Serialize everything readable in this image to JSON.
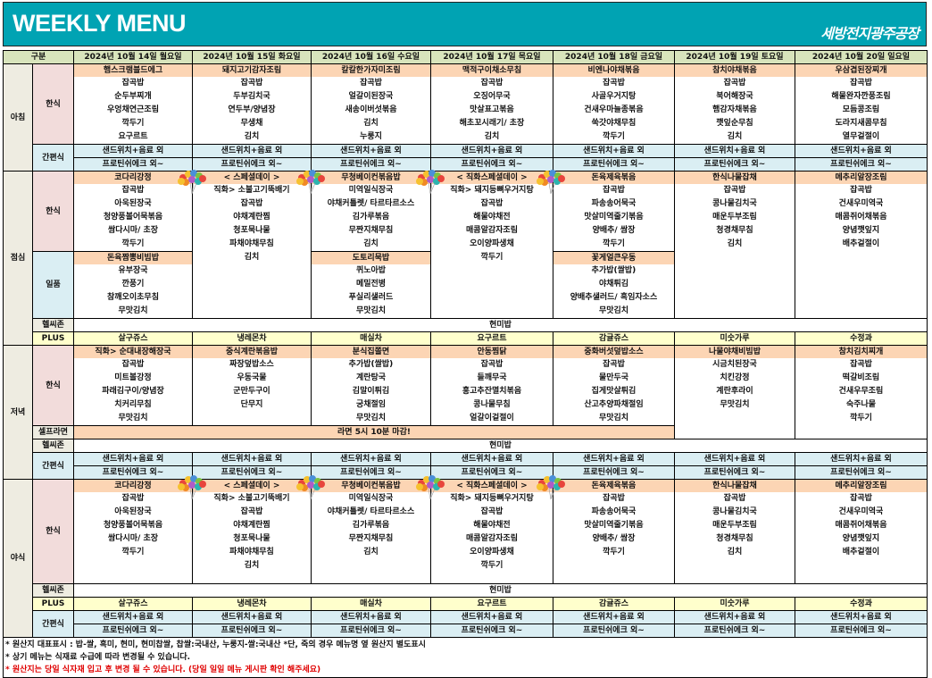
{
  "header": {
    "title": "WEEKLY MENU",
    "logo": "세방전지광주공장",
    "category_label": "구분",
    "days": [
      "2024년 10월 14일 월요일",
      "2024년 10월 15일 화요일",
      "2024년 10월 16일 수요일",
      "2024년 10월 17일 목요일",
      "2024년 10월 18일 금요일",
      "2024년 10월 19일 토요일",
      "2024년 10월 20일 일요일"
    ]
  },
  "colors": {
    "title_bar": "#00a3b3",
    "main_dish": "#fcd5b4",
    "snack": "#daeef3",
    "plus": "#ffffcc",
    "header": "#d8e4bc",
    "korean_label": "#f2dcdb",
    "notice_red": "#e00000"
  },
  "breakfast": {
    "label": "아침",
    "korean": {
      "label": "한식",
      "days": [
        {
          "main": "햄스크램블드에그",
          "items": [
            "잡곡밥",
            "순두부찌개",
            "우엉채연근조림",
            "깍두기",
            "요구르트"
          ]
        },
        {
          "main": "돼지고기감자조림",
          "items": [
            "잡곡밥",
            "두부김치국",
            "연두부/양념장",
            "무생채",
            "김치"
          ]
        },
        {
          "main": "칼칼한가자미조림",
          "items": [
            "잡곡밥",
            "얼갈이된장국",
            "새송이버섯볶음",
            "김치",
            "누룽지"
          ]
        },
        {
          "main": "맥적구이채소무침",
          "items": [
            "잡곡밥",
            "오징어무국",
            "맛살표고볶음",
            "해초꼬시래기/ 초장",
            "김치"
          ]
        },
        {
          "main": "비엔나야채볶음",
          "items": [
            "잡곡밥",
            "사골우거지탕",
            "건새우마늘종볶음",
            "쑥갓야채무침",
            "깍두기"
          ]
        },
        {
          "main": "참치야채볶음",
          "items": [
            "잡곡밥",
            "북어해장국",
            "햄감자채볶음",
            "깻잎순무침",
            "김치"
          ]
        },
        {
          "main": "우삼겹된장찌개",
          "items": [
            "잡곡밥",
            "해물완자깐풍조림",
            "모듬콩조림",
            "도라지새콤무침",
            "열무겉절이"
          ]
        }
      ]
    },
    "snack": {
      "label": "간편식",
      "line1": [
        "샌드위치+음료 외",
        "샌드위치+음료 외",
        "샌드위치+음료 외",
        "샌드위치+음료 외",
        "샌드위치+음료 외",
        "샌드위치+음료 외",
        "샌드위치+음료 외"
      ],
      "line2": [
        "프로틴쉬에크 외~",
        "프로틴쉬에크 외~",
        "프로틴쉬에크 외~",
        "프로틴쉬에크 외~",
        "프로틴쉬에크 외~",
        "프로틴쉬에크 외~",
        "프로틴쉬에크 외~"
      ]
    }
  },
  "lunch": {
    "label": "점심",
    "korean": {
      "label": "한식",
      "days": [
        {
          "main": "코다리강정",
          "items": [
            "잡곡밥",
            "아욱된장국",
            "청양풍볼어묵볶음",
            "쌈다시마/ 초장",
            "깍두기"
          ]
        },
        {
          "main": "< 스페셜데이 >",
          "items": [
            "직화> 소불고기뚝배기",
            "잡곡밥",
            "야채계란찜",
            "청포묵나물",
            "파채야채무침",
            "김치"
          ]
        },
        {
          "main": "무청베이컨볶음밥",
          "items": [
            "미역일식장국",
            "야채커틀렛/ 타르타르소스",
            "김가루볶음",
            "무짠지채무침",
            "김치"
          ]
        },
        {
          "main": "< 직화스페셜데이 >",
          "items": [
            "직화> 돼지등뼈우거지탕",
            "잡곡밥",
            "해물야채전",
            "매콤알감자조림",
            "오이양파생채",
            "깍두기"
          ]
        },
        {
          "main": "돈육제육볶음",
          "items": [
            "잡곡밥",
            "파송송어묵국",
            "맛살미역줄기볶음",
            "양배추/ 쌈장",
            "깍두기"
          ]
        },
        {
          "main": "한식나물잡채",
          "items": [
            "잡곡밥",
            "콩나물김치국",
            "매운두부조림",
            "청경채무침",
            "김치"
          ]
        },
        {
          "main": "메추리알장조림",
          "items": [
            "잡곡밥",
            "건새우미역국",
            "매콤쥐어채볶음",
            "양념깻잎지",
            "배추겉절이"
          ]
        }
      ]
    },
    "special": {
      "label": "일품",
      "days": [
        {
          "main": "돈육짬뽕비빔밥",
          "items": [
            "유부장국",
            "깐풍기",
            "참깨오이초무침",
            "무맛김치"
          ]
        },
        null,
        {
          "main": "도토리묵밥",
          "items": [
            "퀴노아밥",
            "메밀전병",
            "푸실리샐러드",
            "무맛김치"
          ]
        },
        null,
        {
          "main": "꽃게얼큰우동",
          "items": [
            "추가밥(쌀밥)",
            "야채튀김",
            "양배추샐러드/ 흑임자소스",
            "무맛김치"
          ]
        },
        null,
        null
      ]
    },
    "healthy": {
      "label": "헬씨존",
      "value": "현미밥"
    },
    "plus": {
      "label": "PLUS",
      "days": [
        "살구쥬스",
        "냉레몬차",
        "매실차",
        "요구르트",
        "감귤쥬스",
        "미숫가루",
        "수정과"
      ]
    }
  },
  "dinner": {
    "label": "저녁",
    "korean": {
      "label": "한식",
      "days": [
        {
          "main": "직화> 순대내장해장국",
          "items": [
            "잡곡밥",
            "미트볼강정",
            "파래김구이/양념장",
            "치커리무침",
            "무맛김치"
          ]
        },
        {
          "main": "중식계란볶음밥",
          "items": [
            "짜장덮밥소스",
            "우동국물",
            "군만두구이",
            "단무지"
          ]
        },
        {
          "main": "분식집쫄면",
          "items": [
            "추가밥(쌀밥)",
            "계란탕국",
            "김말이튀김",
            "궁채절임",
            "무맛김치"
          ]
        },
        {
          "main": "안동찜닭",
          "items": [
            "잡곡밥",
            "들깨무국",
            "홍고추잔멸치볶음",
            "콩나물무침",
            "얼갈이겉절이"
          ]
        },
        {
          "main": "중화버섯덮밥소스",
          "items": [
            "잡곡밥",
            "물만두국",
            "집게맛살튀김",
            "산고추양파채절임",
            "무맛김치"
          ]
        },
        {
          "main": "나물야채비빔밥",
          "items": [
            "시금치된장국",
            "치킨강정",
            "계란후라이",
            "무맛김치"
          ]
        },
        {
          "main": "참치김치찌개",
          "items": [
            "잡곡밥",
            "떡갈비조림",
            "건새우무조림",
            "숙주나물",
            "깍두기"
          ]
        }
      ]
    },
    "self_ramen": {
      "label": "셀프라면",
      "value": "라면 5시 10분 마감!"
    },
    "healthy": {
      "label": "헬씨존",
      "value": "현미밥"
    },
    "snack": {
      "label": "간편식",
      "line1": [
        "샌드위치+음료 외",
        "샌드위치+음료 외",
        "샌드위치+음료 외",
        "샌드위치+음료 외",
        "샌드위치+음료 외",
        "샌드위치+음료 외",
        "샌드위치+음료 외"
      ],
      "line2": [
        "프로틴쉬에크 외~",
        "프로틴쉬에크 외~",
        "프로틴쉬에크 외~",
        "프로틴쉬에크 외~",
        "프로틴쉬에크 외~",
        "프로틴쉬에크 외~",
        "프로틴쉬에크 외~"
      ]
    }
  },
  "night": {
    "label": "야식",
    "korean": {
      "label": "한식",
      "days": [
        {
          "main": "코다리강정",
          "items": [
            "잡곡밥",
            "아욱된장국",
            "청양풍볼어묵볶음",
            "쌈다시마/ 초장",
            "깍두기"
          ]
        },
        {
          "main": "< 스페셜데이 >",
          "items": [
            "직화> 소불고기뚝배기",
            "잡곡밥",
            "야채계란찜",
            "청포묵나물",
            "파채야채무침",
            "김치"
          ]
        },
        {
          "main": "무청베이컨볶음밥",
          "items": [
            "미역일식장국",
            "야채커틀렛/ 타르타르소스",
            "김가루볶음",
            "무짠지채무침",
            "김치"
          ]
        },
        {
          "main": "< 직화스페셜데이 >",
          "items": [
            "직화> 돼지등뼈우거지탕",
            "잡곡밥",
            "해물야채전",
            "매콤알감자조림",
            "오이양파생채",
            "깍두기"
          ]
        },
        {
          "main": "돈육제육볶음",
          "items": [
            "잡곡밥",
            "파송송어묵국",
            "맛살미역줄기볶음",
            "양배추/ 쌈장",
            "깍두기"
          ]
        },
        {
          "main": "한식나물잡채",
          "items": [
            "잡곡밥",
            "콩나물김치국",
            "매운두부조림",
            "청경채무침",
            "김치"
          ]
        },
        {
          "main": "메추리알장조림",
          "items": [
            "잡곡밥",
            "건새우미역국",
            "매콤쥐어채볶음",
            "양념깻잎지",
            "배추겉절이"
          ]
        }
      ]
    },
    "healthy": {
      "label": "헬씨존",
      "value": "현미밥"
    },
    "plus": {
      "label": "PLUS",
      "days": [
        "살구쥬스",
        "냉레몬차",
        "매실차",
        "요구르트",
        "감귤쥬스",
        "미숫가루",
        "수정과"
      ]
    },
    "snack": {
      "label": "간편식",
      "line1": [
        "샌드위치+음료 외",
        "샌드위치+음료 외",
        "샌드위치+음료 외",
        "샌드위치+음료 외",
        "샌드위치+음료 외",
        "샌드위치+음료 외",
        "샌드위치+음료 외"
      ],
      "line2": [
        "프로틴쉬에크 외~",
        "프로틴쉬에크 외~",
        "프로틴쉬에크 외~",
        "프로틴쉬에크 외~",
        "프로틴쉬에크 외~",
        "프로틴쉬에크 외~",
        "프로틴쉬에크 외~"
      ]
    }
  },
  "footer": {
    "notes": [
      "* 원산지 대표표시 : 밥-쌀, 흑미, 현미, 현미찹쌀, 찹쌀:국내산, 누룽지-쌀:국내산  *단, 죽의 경우 메뉴명 옆 원산지 별도표시",
      "* 상기 메뉴는 식재료 수급에 따라 변경될 수 있습니다."
    ],
    "warning": "* 원산지는 당일 식자재 입고 후 변경 될 수 있습니다.  (당일 일일 메뉴 게시판 확인 해주세요)"
  }
}
